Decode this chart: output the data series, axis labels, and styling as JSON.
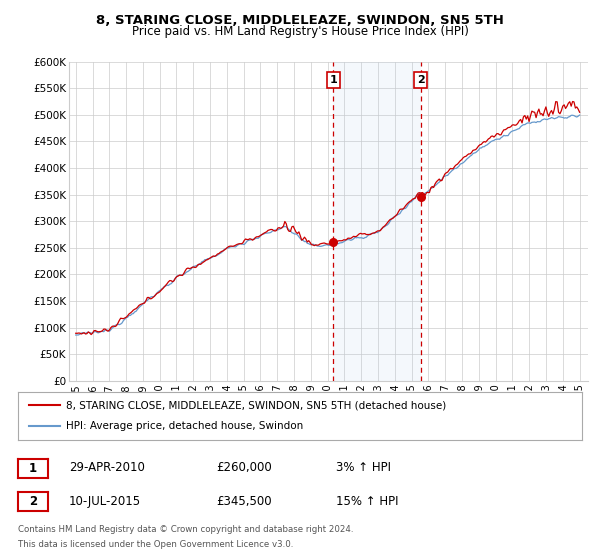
{
  "title": "8, STARING CLOSE, MIDDLELEAZE, SWINDON, SN5 5TH",
  "subtitle": "Price paid vs. HM Land Registry's House Price Index (HPI)",
  "ylim": [
    0,
    600000
  ],
  "yticks": [
    0,
    50000,
    100000,
    150000,
    200000,
    250000,
    300000,
    350000,
    400000,
    450000,
    500000,
    550000,
    600000
  ],
  "ytick_labels": [
    "£0",
    "£50K",
    "£100K",
    "£150K",
    "£200K",
    "£250K",
    "£300K",
    "£350K",
    "£400K",
    "£450K",
    "£500K",
    "£550K",
    "£600K"
  ],
  "xticks": [
    1995,
    1996,
    1997,
    1998,
    1999,
    2000,
    2001,
    2002,
    2003,
    2004,
    2005,
    2006,
    2007,
    2008,
    2009,
    2010,
    2011,
    2012,
    2013,
    2014,
    2015,
    2016,
    2017,
    2018,
    2019,
    2020,
    2021,
    2022,
    2023,
    2024,
    2025
  ],
  "purchase1_x": 2010.33,
  "purchase1_y": 260000,
  "purchase1_label": "1",
  "purchase1_date": "29-APR-2010",
  "purchase1_price": "£260,000",
  "purchase1_hpi": "3% ↑ HPI",
  "purchase2_x": 2015.53,
  "purchase2_y": 345500,
  "purchase2_label": "2",
  "purchase2_date": "10-JUL-2015",
  "purchase2_price": "£345,500",
  "purchase2_hpi": "15% ↑ HPI",
  "shade_start": 2010.33,
  "shade_end": 2015.53,
  "line_color_property": "#cc0000",
  "line_color_hpi": "#6699cc",
  "legend_label_property": "8, STARING CLOSE, MIDDLELEAZE, SWINDON, SN5 5TH (detached house)",
  "legend_label_hpi": "HPI: Average price, detached house, Swindon",
  "footer1": "Contains HM Land Registry data © Crown copyright and database right 2024.",
  "footer2": "This data is licensed under the Open Government Licence v3.0."
}
